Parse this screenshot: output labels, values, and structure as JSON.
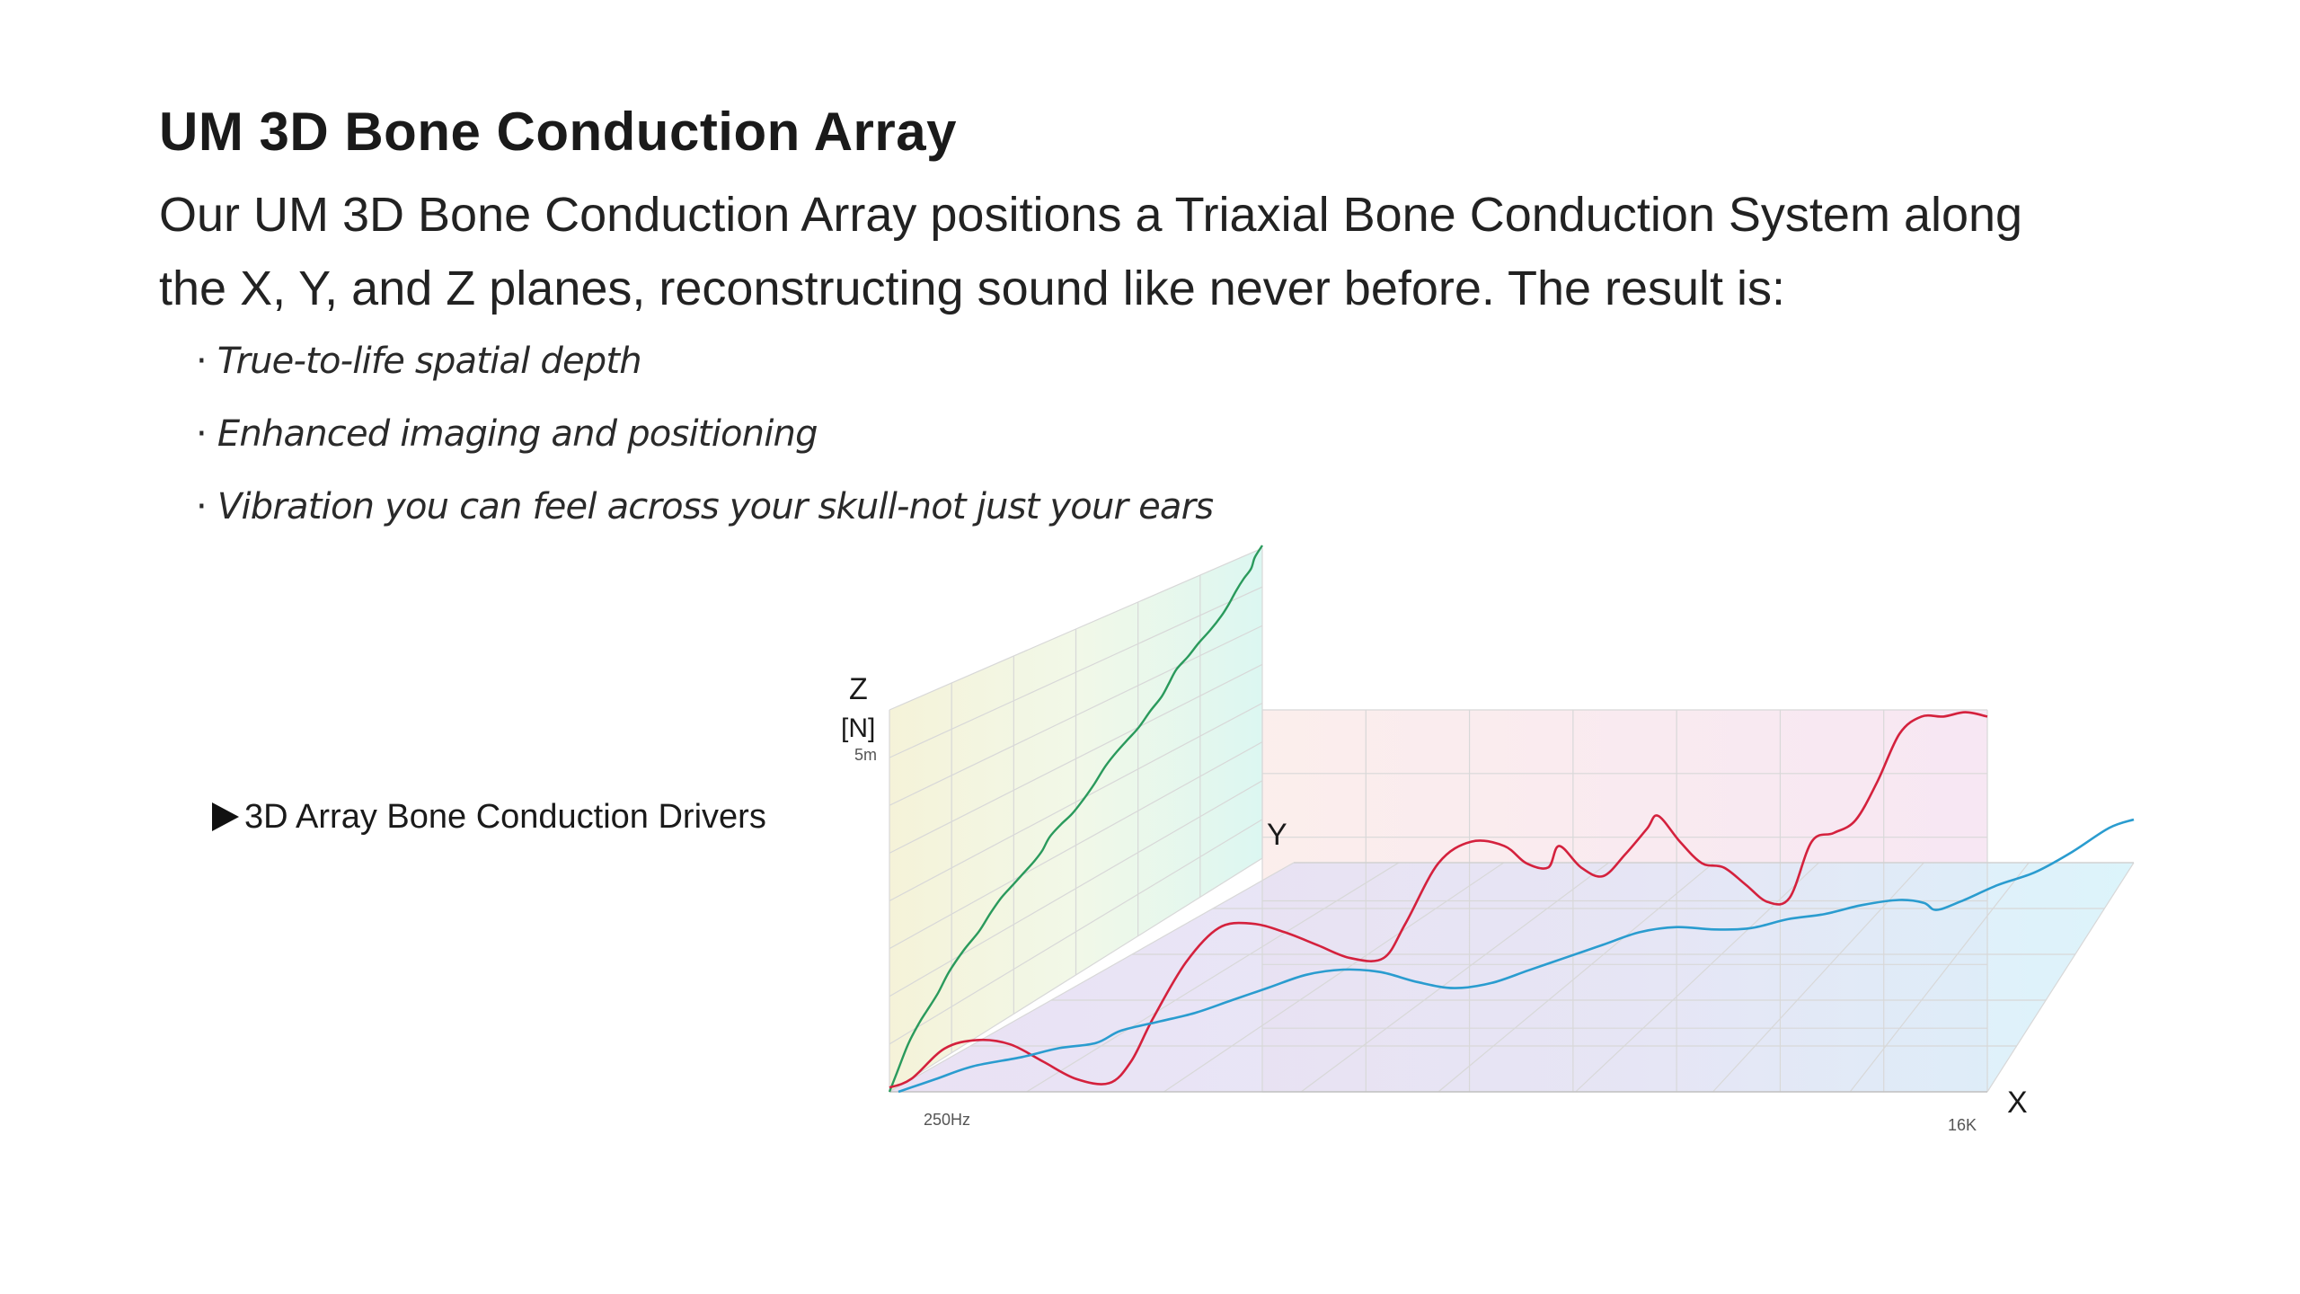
{
  "heading": "UM 3D Bone Conduction Array",
  "intro": {
    "line1": "Our UM 3D Bone Conduction Array positions a Triaxial Bone Conduction System along",
    "line2": "the X, Y, and Z planes, reconstructing sound like never before. The result is:"
  },
  "bullets": [
    "True-to-life spatial depth",
    "Enhanced imaging and positioning",
    "Vibration you can feel across your skull-not just your ears"
  ],
  "bullet_marker": "·",
  "driver_label": "3D Array Bone Conduction Drivers",
  "colors": {
    "z_curve": "#2a9a5c",
    "red_curve": "#d4213d",
    "blue_curve": "#2a9ccf",
    "z_plane": "#f0f4d8",
    "y_plane": "#f8e6ee",
    "floor_plane": "#dcdcf4"
  },
  "chart_data": {
    "type": "line",
    "axes": {
      "z": {
        "label": "Z",
        "unit": "[N]",
        "tick": "5m"
      },
      "y": {
        "label": "Y"
      },
      "x": {
        "label": "X",
        "ticks": [
          "250Hz",
          "16K"
        ]
      }
    },
    "series": [
      {
        "key": "z",
        "plane": "z",
        "points": [
          [
            0,
            0
          ],
          [
            0.02,
            0.08
          ],
          [
            0.05,
            0.2
          ],
          [
            0.08,
            0.28
          ],
          [
            0.1,
            0.32
          ],
          [
            0.13,
            0.38
          ],
          [
            0.16,
            0.46
          ],
          [
            0.2,
            0.53
          ],
          [
            0.24,
            0.58
          ],
          [
            0.27,
            0.64
          ],
          [
            0.3,
            0.69
          ],
          [
            0.33,
            0.72
          ],
          [
            0.36,
            0.75
          ],
          [
            0.39,
            0.78
          ],
          [
            0.41,
            0.81
          ],
          [
            0.43,
            0.86
          ],
          [
            0.46,
            0.89
          ],
          [
            0.49,
            0.91
          ],
          [
            0.52,
            0.95
          ],
          [
            0.55,
            1.0
          ],
          [
            0.58,
            1.06
          ],
          [
            0.61,
            1.1
          ],
          [
            0.64,
            1.13
          ],
          [
            0.67,
            1.16
          ],
          [
            0.7,
            1.21
          ],
          [
            0.73,
            1.25
          ],
          [
            0.75,
            1.3
          ],
          [
            0.77,
            1.35
          ],
          [
            0.8,
            1.38
          ],
          [
            0.83,
            1.42
          ],
          [
            0.86,
            1.45
          ],
          [
            0.89,
            1.49
          ],
          [
            0.91,
            1.53
          ],
          [
            0.93,
            1.58
          ],
          [
            0.95,
            1.62
          ],
          [
            0.97,
            1.65
          ],
          [
            0.98,
            1.7
          ],
          [
            1,
            1.74
          ]
        ]
      },
      {
        "key": "red",
        "plane": "y",
        "points": [
          [
            0,
            0.01
          ],
          [
            0.02,
            0.03
          ],
          [
            0.05,
            0.1
          ],
          [
            0.08,
            0.12
          ],
          [
            0.11,
            0.11
          ],
          [
            0.14,
            0.07
          ],
          [
            0.17,
            0.03
          ],
          [
            0.2,
            0.02
          ],
          [
            0.22,
            0.07
          ],
          [
            0.24,
            0.17
          ],
          [
            0.27,
            0.3
          ],
          [
            0.3,
            0.38
          ],
          [
            0.33,
            0.39
          ],
          [
            0.36,
            0.37
          ],
          [
            0.39,
            0.34
          ],
          [
            0.42,
            0.31
          ],
          [
            0.45,
            0.31
          ],
          [
            0.47,
            0.39
          ],
          [
            0.5,
            0.53
          ],
          [
            0.53,
            0.58
          ],
          [
            0.56,
            0.57
          ],
          [
            0.58,
            0.53
          ],
          [
            0.6,
            0.52
          ],
          [
            0.61,
            0.57
          ],
          [
            0.63,
            0.52
          ],
          [
            0.65,
            0.5
          ],
          [
            0.67,
            0.55
          ],
          [
            0.69,
            0.61
          ],
          [
            0.7,
            0.64
          ],
          [
            0.72,
            0.58
          ],
          [
            0.74,
            0.53
          ],
          [
            0.76,
            0.52
          ],
          [
            0.78,
            0.48
          ],
          [
            0.8,
            0.44
          ],
          [
            0.82,
            0.45
          ],
          [
            0.84,
            0.58
          ],
          [
            0.86,
            0.6
          ],
          [
            0.88,
            0.63
          ],
          [
            0.9,
            0.72
          ],
          [
            0.92,
            0.83
          ],
          [
            0.94,
            0.87
          ],
          [
            0.96,
            0.87
          ],
          [
            0.98,
            0.88
          ],
          [
            1,
            0.87
          ]
        ]
      },
      {
        "key": "blue",
        "plane": "floor",
        "points": [
          [
            0,
            0
          ],
          [
            0.03,
            0.03
          ],
          [
            0.06,
            0.06
          ],
          [
            0.1,
            0.08
          ],
          [
            0.13,
            0.1
          ],
          [
            0.16,
            0.11
          ],
          [
            0.18,
            0.14
          ],
          [
            0.21,
            0.16
          ],
          [
            0.24,
            0.18
          ],
          [
            0.27,
            0.21
          ],
          [
            0.3,
            0.24
          ],
          [
            0.33,
            0.27
          ],
          [
            0.36,
            0.28
          ],
          [
            0.39,
            0.27
          ],
          [
            0.42,
            0.24
          ],
          [
            0.45,
            0.22
          ],
          [
            0.48,
            0.23
          ],
          [
            0.51,
            0.26
          ],
          [
            0.54,
            0.29
          ],
          [
            0.57,
            0.32
          ],
          [
            0.6,
            0.35
          ],
          [
            0.63,
            0.36
          ],
          [
            0.66,
            0.35
          ],
          [
            0.69,
            0.35
          ],
          [
            0.72,
            0.37
          ],
          [
            0.75,
            0.38
          ],
          [
            0.78,
            0.4
          ],
          [
            0.81,
            0.41
          ],
          [
            0.83,
            0.4
          ],
          [
            0.84,
            0.38
          ],
          [
            0.86,
            0.4
          ],
          [
            0.89,
            0.44
          ],
          [
            0.92,
            0.47
          ],
          [
            0.95,
            0.52
          ],
          [
            0.98,
            0.58
          ],
          [
            1,
            0.6
          ]
        ]
      }
    ]
  }
}
